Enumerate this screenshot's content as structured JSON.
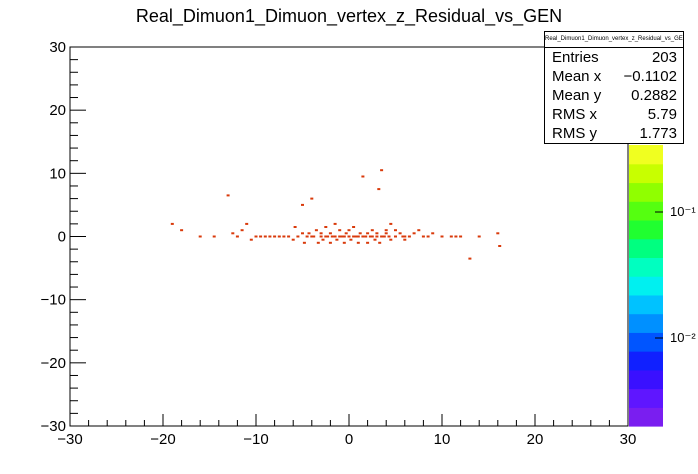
{
  "chart_data": {
    "type": "scatter",
    "title": "Real_Dimuon1_Dimuon_vertex_z_Residual_vs_GEN",
    "xlabel": "",
    "ylabel": "",
    "xlim": [
      -30,
      30
    ],
    "ylim": [
      -30,
      30
    ],
    "x_ticks": [
      "−30",
      "−20",
      "−10",
      "0",
      "10",
      "20",
      "30"
    ],
    "y_ticks": [
      "−30",
      "−20",
      "−10",
      "0",
      "10",
      "20",
      "30"
    ],
    "color_scale": {
      "log": true,
      "labels": [
        "10⁻¹",
        "10⁻²"
      ]
    },
    "marker_color": "#d93a0b",
    "points": [
      [
        -19,
        2
      ],
      [
        -18,
        1
      ],
      [
        -16,
        0
      ],
      [
        -14.5,
        0
      ],
      [
        -13,
        6.5
      ],
      [
        -12.5,
        0.5
      ],
      [
        -12,
        0
      ],
      [
        -11.5,
        1
      ],
      [
        -11,
        2
      ],
      [
        -10.5,
        -0.5
      ],
      [
        -10,
        0
      ],
      [
        -9.5,
        0
      ],
      [
        -9,
        0
      ],
      [
        -8.5,
        0
      ],
      [
        -8,
        0
      ],
      [
        -7.5,
        0
      ],
      [
        -7,
        0
      ],
      [
        -6.5,
        0
      ],
      [
        -6,
        -0.5
      ],
      [
        -5.8,
        1.5
      ],
      [
        -5.5,
        0
      ],
      [
        -5,
        0.5
      ],
      [
        -5,
        5
      ],
      [
        -4.8,
        -1
      ],
      [
        -4.5,
        0
      ],
      [
        -4.3,
        0.5
      ],
      [
        -4,
        0
      ],
      [
        -4,
        6
      ],
      [
        -3.8,
        0
      ],
      [
        -3.5,
        1
      ],
      [
        -3.3,
        -1
      ],
      [
        -3,
        0
      ],
      [
        -3,
        0.5
      ],
      [
        -2.8,
        -0.5
      ],
      [
        -2.5,
        0
      ],
      [
        -2.5,
        1.5
      ],
      [
        -2.3,
        0
      ],
      [
        -2,
        0.5
      ],
      [
        -2,
        -1
      ],
      [
        -1.8,
        0
      ],
      [
        -1.5,
        0
      ],
      [
        -1.5,
        2
      ],
      [
        -1.3,
        -0.5
      ],
      [
        -1,
        0
      ],
      [
        -1,
        1
      ],
      [
        -0.8,
        0
      ],
      [
        -0.5,
        0
      ],
      [
        -0.5,
        -1
      ],
      [
        -0.3,
        0.5
      ],
      [
        0,
        0
      ],
      [
        0,
        1
      ],
      [
        0.2,
        -0.5
      ],
      [
        0.5,
        0
      ],
      [
        0.5,
        1.5
      ],
      [
        0.7,
        0
      ],
      [
        1,
        0
      ],
      [
        1,
        -1
      ],
      [
        1.2,
        0.5
      ],
      [
        1.5,
        0
      ],
      [
        1.5,
        9.5
      ],
      [
        1.8,
        0
      ],
      [
        2,
        0.5
      ],
      [
        2,
        -1
      ],
      [
        2.3,
        0
      ],
      [
        2.5,
        0
      ],
      [
        2.5,
        1
      ],
      [
        2.8,
        -0.5
      ],
      [
        3,
        0
      ],
      [
        3,
        0.5
      ],
      [
        3.2,
        7.5
      ],
      [
        3.3,
        -1
      ],
      [
        3.5,
        0
      ],
      [
        3.5,
        10.5
      ],
      [
        3.8,
        0
      ],
      [
        4,
        0.5
      ],
      [
        4,
        1
      ],
      [
        4.3,
        0
      ],
      [
        4.5,
        -0.5
      ],
      [
        4.5,
        2
      ],
      [
        5,
        0
      ],
      [
        5,
        1
      ],
      [
        5.5,
        0.5
      ],
      [
        5.8,
        0
      ],
      [
        6,
        0
      ],
      [
        6,
        -0.5
      ],
      [
        6.5,
        0
      ],
      [
        7,
        0.5
      ],
      [
        7.5,
        1
      ],
      [
        8,
        0
      ],
      [
        8.5,
        0
      ],
      [
        9,
        0.5
      ],
      [
        10,
        0
      ],
      [
        11,
        0
      ],
      [
        11.5,
        0
      ],
      [
        12,
        0
      ],
      [
        13,
        -3.5
      ],
      [
        14,
        0
      ],
      [
        16,
        0.5
      ],
      [
        16.2,
        -1.5
      ]
    ]
  },
  "stats": {
    "title": "Real_Dimuon1_Dimuon_vertex_z_Residual_vs_GEN",
    "rows": [
      {
        "label": "Entries",
        "value": "203"
      },
      {
        "label": "Mean x",
        "value": "−0.1102"
      },
      {
        "label": "Mean y",
        "value": "0.2882"
      },
      {
        "label": "RMS x",
        "value": "5.79"
      },
      {
        "label": "RMS y",
        "value": "1.773"
      }
    ]
  }
}
